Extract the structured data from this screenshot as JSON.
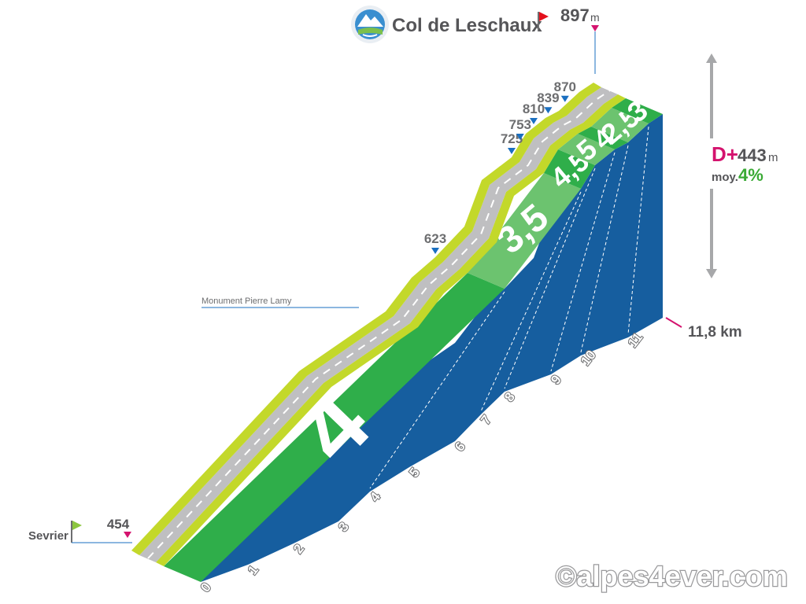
{
  "summit": {
    "name": "Col de Leschaux",
    "altitude": "897",
    "unit": "m"
  },
  "start": {
    "name": "Sevrier",
    "altitude": "454"
  },
  "landmark": "Monument Pierre Lamy",
  "climb": {
    "gain_prefix": "D+",
    "gain_value": "443",
    "gain_unit": "m",
    "avg_label": "moy.",
    "avg_value": "4%"
  },
  "distance_label": "11,8 km",
  "watermark": "©alpes4ever.com",
  "colors": {
    "road": "#bfbfc1",
    "lime": "#c3d82a",
    "green": "#2fae4a",
    "light_green": "#6cc36f",
    "blue": "#165e9f",
    "magenta": "#d4136e",
    "label_gray": "#6d6e70",
    "marker_blue": "#1a6fc0",
    "flag_red": "#e3101c",
    "flag_green": "#8cc63f",
    "accent_green": "#3aaa35"
  },
  "icon": "mountain-badge-icon",
  "chart_data": {
    "type": "area",
    "xlabel": "",
    "ylabel": "",
    "x_ticks": [
      "0",
      "1",
      "2",
      "3",
      "4",
      "5",
      "6",
      "7",
      "8",
      "9",
      "10",
      "11"
    ],
    "distance_km": 11.8,
    "altitude_points": [
      {
        "alt": 454,
        "label": "454"
      },
      {
        "alt": 623,
        "label": "623"
      },
      {
        "alt": 725,
        "label": "725"
      },
      {
        "alt": 753,
        "label": "753"
      },
      {
        "alt": 810,
        "label": "810"
      },
      {
        "alt": 839,
        "label": "839"
      },
      {
        "alt": 870,
        "label": "870"
      },
      {
        "alt": 897,
        "label": "897"
      }
    ],
    "gradients": [
      {
        "from_km": 0,
        "to_km": 4,
        "pct": "4"
      },
      {
        "from_km": 4,
        "to_km": 7,
        "pct": "3,5"
      },
      {
        "from_km": 7,
        "to_km": 8,
        "pct": "4,5"
      },
      {
        "from_km": 8,
        "to_km": 9,
        "pct": "5"
      },
      {
        "from_km": 9,
        "to_km": 10,
        "pct": "4"
      },
      {
        "from_km": 10,
        "to_km": 11,
        "pct": "2,5"
      },
      {
        "from_km": 11,
        "to_km": 11.8,
        "pct": "3"
      }
    ]
  }
}
